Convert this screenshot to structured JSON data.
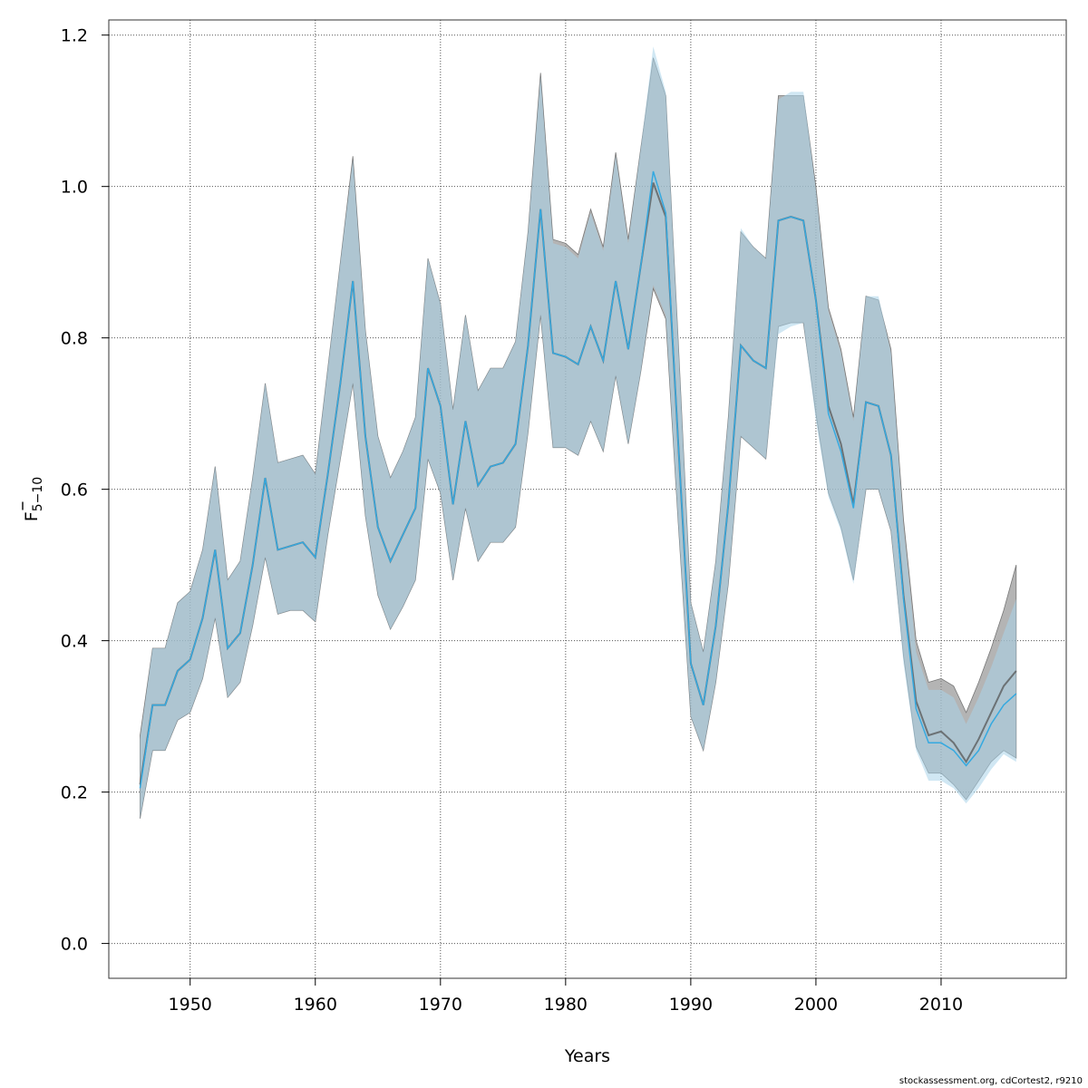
{
  "chart_data": {
    "type": "area",
    "xlabel": "Years",
    "ylabel": {
      "main": "F",
      "subscript": "5−10",
      "overbar": true
    },
    "xlim": [
      1943.5,
      2020
    ],
    "ylim": [
      -0.046,
      1.22
    ],
    "x_ticks": [
      1950,
      1960,
      1970,
      1980,
      1990,
      2000,
      2010
    ],
    "y_ticks": [
      0.0,
      0.2,
      0.4,
      0.6,
      0.8,
      1.0,
      1.2
    ],
    "y_tick_labels": [
      "0.0",
      "0.2",
      "0.4",
      "0.6",
      "0.8",
      "1.0",
      "1.2"
    ],
    "grid": true,
    "x": [
      1946,
      1947,
      1948,
      1949,
      1950,
      1951,
      1952,
      1953,
      1954,
      1955,
      1956,
      1957,
      1958,
      1959,
      1960,
      1961,
      1962,
      1963,
      1964,
      1965,
      1966,
      1967,
      1968,
      1969,
      1970,
      1971,
      1972,
      1973,
      1974,
      1975,
      1976,
      1977,
      1978,
      1979,
      1980,
      1981,
      1982,
      1983,
      1984,
      1985,
      1986,
      1987,
      1988,
      1989,
      1990,
      1991,
      1992,
      1993,
      1994,
      1995,
      1996,
      1997,
      1998,
      1999,
      2000,
      2001,
      2002,
      2003,
      2004,
      2005,
      2006,
      2007,
      2008,
      2009,
      2010,
      2011,
      2012,
      2013,
      2014,
      2015,
      2016
    ],
    "series": [
      {
        "color": "#555555",
        "band_color": "#8c8c8c",
        "values": [
          0.21,
          0.315,
          0.315,
          0.36,
          0.375,
          0.43,
          0.52,
          0.39,
          0.41,
          0.5,
          0.615,
          0.52,
          0.525,
          0.53,
          0.51,
          0.62,
          0.74,
          0.875,
          0.67,
          0.55,
          0.505,
          0.54,
          0.575,
          0.76,
          0.71,
          0.58,
          0.69,
          0.605,
          0.63,
          0.635,
          0.66,
          0.79,
          0.97,
          0.78,
          0.775,
          0.765,
          0.815,
          0.77,
          0.875,
          0.785,
          0.895,
          1.005,
          0.96,
          0.66,
          0.37,
          0.315,
          0.42,
          0.58,
          0.79,
          0.77,
          0.76,
          0.955,
          0.96,
          0.955,
          0.85,
          0.71,
          0.66,
          0.58,
          0.715,
          0.71,
          0.645,
          0.46,
          0.32,
          0.275,
          0.28,
          0.265,
          0.24,
          0.27,
          0.305,
          0.34,
          0.36
        ],
        "lower": [
          0.165,
          0.255,
          0.255,
          0.295,
          0.305,
          0.35,
          0.43,
          0.325,
          0.345,
          0.42,
          0.51,
          0.435,
          0.44,
          0.44,
          0.425,
          0.54,
          0.64,
          0.74,
          0.565,
          0.46,
          0.415,
          0.445,
          0.48,
          0.64,
          0.595,
          0.48,
          0.575,
          0.505,
          0.53,
          0.53,
          0.55,
          0.675,
          0.83,
          0.655,
          0.655,
          0.645,
          0.69,
          0.65,
          0.75,
          0.66,
          0.755,
          0.865,
          0.825,
          0.555,
          0.3,
          0.255,
          0.345,
          0.475,
          0.67,
          0.655,
          0.64,
          0.815,
          0.82,
          0.82,
          0.7,
          0.595,
          0.55,
          0.48,
          0.6,
          0.6,
          0.545,
          0.38,
          0.26,
          0.225,
          0.225,
          0.21,
          0.19,
          0.215,
          0.24,
          0.255,
          0.245
        ],
        "upper": [
          0.275,
          0.39,
          0.39,
          0.45,
          0.465,
          0.52,
          0.63,
          0.48,
          0.505,
          0.615,
          0.74,
          0.635,
          0.64,
          0.645,
          0.62,
          0.76,
          0.9,
          1.04,
          0.81,
          0.67,
          0.615,
          0.65,
          0.695,
          0.905,
          0.845,
          0.705,
          0.83,
          0.73,
          0.76,
          0.76,
          0.795,
          0.94,
          1.15,
          0.93,
          0.925,
          0.91,
          0.97,
          0.92,
          1.045,
          0.93,
          1.05,
          1.17,
          1.12,
          0.795,
          0.45,
          0.385,
          0.505,
          0.695,
          0.94,
          0.92,
          0.905,
          1.12,
          1.12,
          1.12,
          1.0,
          0.84,
          0.785,
          0.695,
          0.855,
          0.85,
          0.785,
          0.56,
          0.4,
          0.345,
          0.35,
          0.34,
          0.305,
          0.345,
          0.39,
          0.44,
          0.5
        ]
      },
      {
        "color": "#35a9e0",
        "band_color": "#a9d3ea",
        "values": [
          0.205,
          0.315,
          0.315,
          0.36,
          0.375,
          0.43,
          0.52,
          0.39,
          0.41,
          0.5,
          0.615,
          0.52,
          0.525,
          0.53,
          0.51,
          0.62,
          0.74,
          0.875,
          0.67,
          0.55,
          0.505,
          0.54,
          0.575,
          0.76,
          0.71,
          0.58,
          0.69,
          0.605,
          0.63,
          0.635,
          0.66,
          0.79,
          0.97,
          0.78,
          0.775,
          0.765,
          0.815,
          0.77,
          0.875,
          0.785,
          0.895,
          1.02,
          0.965,
          0.66,
          0.37,
          0.315,
          0.42,
          0.58,
          0.79,
          0.77,
          0.76,
          0.955,
          0.96,
          0.955,
          0.85,
          0.7,
          0.65,
          0.575,
          0.715,
          0.71,
          0.645,
          0.455,
          0.31,
          0.265,
          0.265,
          0.255,
          0.235,
          0.255,
          0.29,
          0.315,
          0.33
        ],
        "lower": [
          0.165,
          0.255,
          0.255,
          0.295,
          0.305,
          0.35,
          0.43,
          0.325,
          0.345,
          0.42,
          0.51,
          0.435,
          0.44,
          0.44,
          0.425,
          0.54,
          0.64,
          0.74,
          0.565,
          0.46,
          0.415,
          0.445,
          0.48,
          0.64,
          0.595,
          0.48,
          0.575,
          0.505,
          0.53,
          0.53,
          0.55,
          0.675,
          0.83,
          0.655,
          0.655,
          0.645,
          0.69,
          0.65,
          0.75,
          0.66,
          0.755,
          0.87,
          0.83,
          0.555,
          0.3,
          0.255,
          0.345,
          0.475,
          0.67,
          0.655,
          0.64,
          0.805,
          0.815,
          0.82,
          0.69,
          0.59,
          0.545,
          0.475,
          0.6,
          0.6,
          0.545,
          0.37,
          0.255,
          0.215,
          0.215,
          0.205,
          0.185,
          0.205,
          0.23,
          0.25,
          0.24
        ],
        "upper": [
          0.27,
          0.39,
          0.39,
          0.45,
          0.465,
          0.52,
          0.63,
          0.48,
          0.505,
          0.615,
          0.74,
          0.635,
          0.64,
          0.645,
          0.62,
          0.76,
          0.9,
          1.035,
          0.81,
          0.67,
          0.615,
          0.65,
          0.695,
          0.905,
          0.845,
          0.705,
          0.83,
          0.73,
          0.76,
          0.76,
          0.795,
          0.94,
          1.145,
          0.925,
          0.92,
          0.905,
          0.965,
          0.915,
          1.04,
          0.925,
          1.05,
          1.185,
          1.125,
          0.795,
          0.45,
          0.385,
          0.505,
          0.695,
          0.945,
          0.92,
          0.905,
          1.115,
          1.125,
          1.125,
          0.995,
          0.835,
          0.78,
          0.69,
          0.855,
          0.855,
          0.78,
          0.55,
          0.385,
          0.335,
          0.335,
          0.325,
          0.29,
          0.325,
          0.365,
          0.41,
          0.455
        ]
      }
    ]
  },
  "credit": "stockassessment.org, cdCortest2, r9210"
}
